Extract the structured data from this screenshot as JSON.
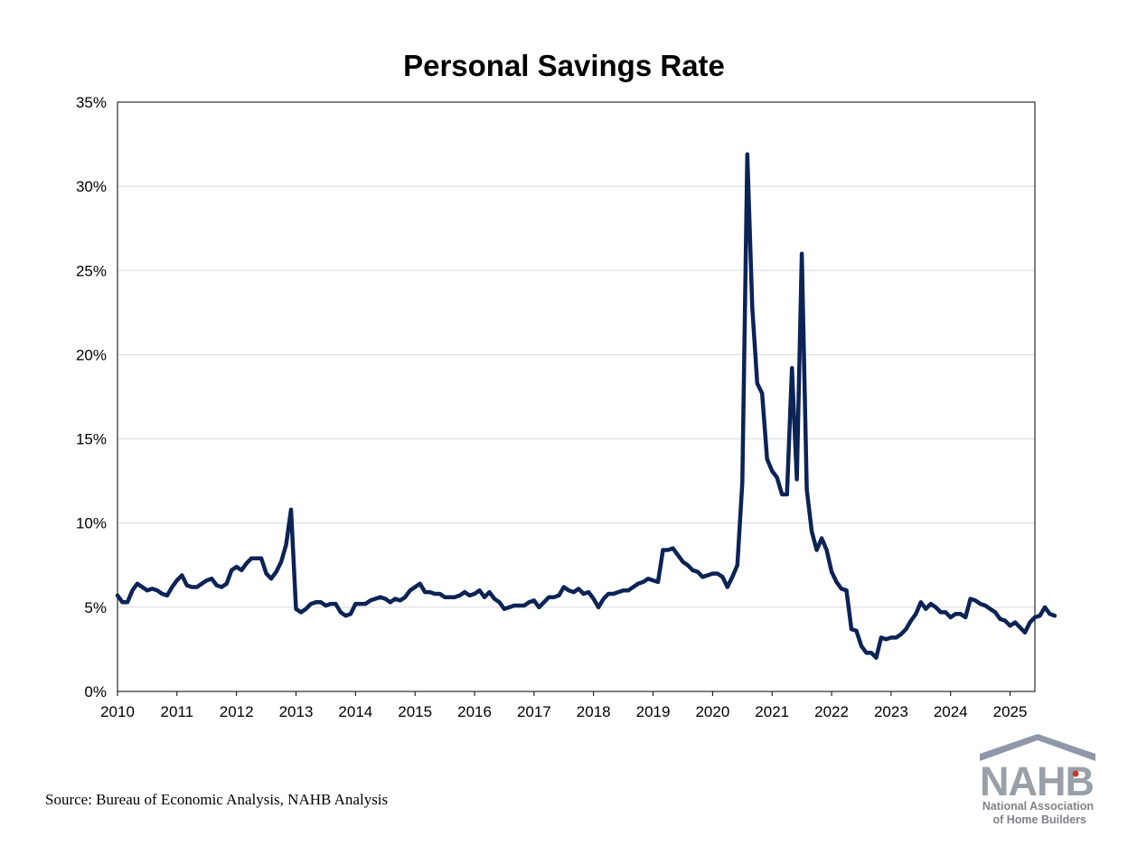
{
  "chart_data": {
    "type": "line",
    "title": "Personal Savings Rate",
    "xlabel": "",
    "ylabel": "",
    "ylim": [
      0,
      35
    ],
    "xlim": [
      "2010-01",
      "2025-06"
    ],
    "y_ticks": [
      "0%",
      "5%",
      "10%",
      "15%",
      "20%",
      "25%",
      "30%",
      "35%"
    ],
    "x_ticks": [
      "2010",
      "2011",
      "2012",
      "2013",
      "2014",
      "2015",
      "2016",
      "2017",
      "2018",
      "2019",
      "2020",
      "2021",
      "2022",
      "2023",
      "2024",
      "2025"
    ],
    "grid": "horizontal",
    "line_color": "#0c2356",
    "series": [
      {
        "points": [
          [
            "2010-01",
            5.7
          ],
          [
            "2010-02",
            5.3
          ],
          [
            "2010-03",
            5.3
          ],
          [
            "2010-04",
            6.0
          ],
          [
            "2010-05",
            6.4
          ],
          [
            "2010-06",
            6.2
          ],
          [
            "2010-07",
            6.0
          ],
          [
            "2010-08",
            6.1
          ],
          [
            "2010-09",
            6.0
          ],
          [
            "2010-10",
            5.8
          ],
          [
            "2010-11",
            5.7
          ],
          [
            "2010-12",
            6.2
          ],
          [
            "2011-01",
            6.6
          ],
          [
            "2011-02",
            6.9
          ],
          [
            "2011-03",
            6.3
          ],
          [
            "2011-04",
            6.2
          ],
          [
            "2011-05",
            6.2
          ],
          [
            "2011-06",
            6.4
          ],
          [
            "2011-07",
            6.6
          ],
          [
            "2011-08",
            6.7
          ],
          [
            "2011-09",
            6.3
          ],
          [
            "2011-10",
            6.2
          ],
          [
            "2011-11",
            6.4
          ],
          [
            "2011-12",
            7.2
          ],
          [
            "2012-01",
            7.4
          ],
          [
            "2012-02",
            7.2
          ],
          [
            "2012-03",
            7.6
          ],
          [
            "2012-04",
            7.9
          ],
          [
            "2012-05",
            7.9
          ],
          [
            "2012-06",
            7.9
          ],
          [
            "2012-07",
            7.0
          ],
          [
            "2012-08",
            6.7
          ],
          [
            "2012-09",
            7.1
          ],
          [
            "2012-10",
            7.7
          ],
          [
            "2012-11",
            8.7
          ],
          [
            "2012-12",
            10.8
          ],
          [
            "2013-01",
            4.9
          ],
          [
            "2013-02",
            4.7
          ],
          [
            "2013-03",
            4.9
          ],
          [
            "2013-04",
            5.2
          ],
          [
            "2013-05",
            5.3
          ],
          [
            "2013-06",
            5.3
          ],
          [
            "2013-07",
            5.1
          ],
          [
            "2013-08",
            5.2
          ],
          [
            "2013-09",
            5.2
          ],
          [
            "2013-10",
            4.7
          ],
          [
            "2013-11",
            4.5
          ],
          [
            "2013-12",
            4.6
          ],
          [
            "2014-01",
            5.2
          ],
          [
            "2014-02",
            5.2
          ],
          [
            "2014-03",
            5.2
          ],
          [
            "2014-04",
            5.4
          ],
          [
            "2014-05",
            5.5
          ],
          [
            "2014-06",
            5.6
          ],
          [
            "2014-07",
            5.5
          ],
          [
            "2014-08",
            5.3
          ],
          [
            "2014-09",
            5.5
          ],
          [
            "2014-10",
            5.4
          ],
          [
            "2014-11",
            5.6
          ],
          [
            "2014-12",
            6.0
          ],
          [
            "2015-01",
            6.2
          ],
          [
            "2015-02",
            6.4
          ],
          [
            "2015-03",
            5.9
          ],
          [
            "2015-04",
            5.9
          ],
          [
            "2015-05",
            5.8
          ],
          [
            "2015-06",
            5.8
          ],
          [
            "2015-07",
            5.6
          ],
          [
            "2015-08",
            5.6
          ],
          [
            "2015-09",
            5.6
          ],
          [
            "2015-10",
            5.7
          ],
          [
            "2015-11",
            5.9
          ],
          [
            "2015-12",
            5.7
          ],
          [
            "2016-01",
            5.8
          ],
          [
            "2016-02",
            6.0
          ],
          [
            "2016-03",
            5.6
          ],
          [
            "2016-04",
            5.9
          ],
          [
            "2016-05",
            5.5
          ],
          [
            "2016-06",
            5.3
          ],
          [
            "2016-07",
            4.9
          ],
          [
            "2016-08",
            5.0
          ],
          [
            "2016-09",
            5.1
          ],
          [
            "2016-10",
            5.1
          ],
          [
            "2016-11",
            5.1
          ],
          [
            "2016-12",
            5.3
          ],
          [
            "2017-01",
            5.4
          ],
          [
            "2017-02",
            5.0
          ],
          [
            "2017-03",
            5.3
          ],
          [
            "2017-04",
            5.6
          ],
          [
            "2017-05",
            5.6
          ],
          [
            "2017-06",
            5.7
          ],
          [
            "2017-07",
            6.2
          ],
          [
            "2017-08",
            6.0
          ],
          [
            "2017-09",
            5.9
          ],
          [
            "2017-10",
            6.1
          ],
          [
            "2017-11",
            5.8
          ],
          [
            "2017-12",
            5.9
          ],
          [
            "2018-01",
            5.5
          ],
          [
            "2018-02",
            5.0
          ],
          [
            "2018-03",
            5.5
          ],
          [
            "2018-04",
            5.8
          ],
          [
            "2018-05",
            5.8
          ],
          [
            "2018-06",
            5.9
          ],
          [
            "2018-07",
            6.0
          ],
          [
            "2018-08",
            6.0
          ],
          [
            "2018-09",
            6.2
          ],
          [
            "2018-10",
            6.4
          ],
          [
            "2018-11",
            6.5
          ],
          [
            "2018-12",
            6.7
          ],
          [
            "2019-01",
            6.6
          ],
          [
            "2019-02",
            6.5
          ],
          [
            "2019-03",
            8.4
          ],
          [
            "2019-04",
            8.4
          ],
          [
            "2019-05",
            8.5
          ],
          [
            "2019-06",
            8.1
          ],
          [
            "2019-07",
            7.7
          ],
          [
            "2019-08",
            7.5
          ],
          [
            "2019-09",
            7.2
          ],
          [
            "2019-10",
            7.1
          ],
          [
            "2019-11",
            6.8
          ],
          [
            "2019-12",
            6.9
          ],
          [
            "2020-01",
            7.0
          ],
          [
            "2020-02",
            7.0
          ],
          [
            "2020-03",
            6.8
          ],
          [
            "2020-04",
            6.2
          ],
          [
            "2020-05",
            6.8
          ],
          [
            "2020-06",
            7.5
          ],
          [
            "2020-07",
            12.4
          ],
          [
            "2020-08",
            31.9
          ],
          [
            "2020-09",
            22.8
          ],
          [
            "2020-10",
            18.3
          ],
          [
            "2020-11",
            17.7
          ],
          [
            "2020-12",
            13.8
          ],
          [
            "2021-01",
            13.1
          ],
          [
            "2021-02",
            12.7
          ],
          [
            "2021-03",
            11.7
          ],
          [
            "2021-04",
            11.7
          ],
          [
            "2021-05",
            19.2
          ],
          [
            "2021-06",
            12.6
          ],
          [
            "2021-07",
            26.0
          ],
          [
            "2021-08",
            12.0
          ],
          [
            "2021-09",
            9.5
          ],
          [
            "2021-10",
            8.4
          ],
          [
            "2021-11",
            9.1
          ],
          [
            "2021-12",
            8.4
          ],
          [
            "2022-01",
            7.1
          ],
          [
            "2022-02",
            6.5
          ],
          [
            "2022-03",
            6.1
          ],
          [
            "2022-04",
            6.0
          ],
          [
            "2022-05",
            3.7
          ],
          [
            "2022-06",
            3.6
          ],
          [
            "2022-07",
            2.7
          ],
          [
            "2022-08",
            2.3
          ],
          [
            "2022-09",
            2.3
          ],
          [
            "2022-10",
            2.0
          ],
          [
            "2022-11",
            3.2
          ],
          [
            "2022-12",
            3.1
          ],
          [
            "2023-01",
            3.2
          ],
          [
            "2023-02",
            3.2
          ],
          [
            "2023-03",
            3.4
          ],
          [
            "2023-04",
            3.7
          ],
          [
            "2023-05",
            4.2
          ],
          [
            "2023-06",
            4.6
          ],
          [
            "2023-07",
            5.3
          ],
          [
            "2023-08",
            4.9
          ],
          [
            "2023-09",
            5.2
          ],
          [
            "2023-10",
            5.0
          ],
          [
            "2023-11",
            4.7
          ],
          [
            "2023-12",
            4.7
          ],
          [
            "2024-01",
            4.4
          ],
          [
            "2024-02",
            4.6
          ],
          [
            "2024-03",
            4.6
          ],
          [
            "2024-04",
            4.4
          ],
          [
            "2024-05",
            5.5
          ],
          [
            "2024-06",
            5.4
          ],
          [
            "2024-07",
            5.2
          ],
          [
            "2024-08",
            5.1
          ],
          [
            "2024-09",
            4.9
          ],
          [
            "2024-10",
            4.7
          ],
          [
            "2024-11",
            4.3
          ],
          [
            "2024-12",
            4.2
          ],
          [
            "2025-01",
            3.9
          ],
          [
            "2025-02",
            4.1
          ],
          [
            "2025-03",
            3.8
          ],
          [
            "2025-04",
            3.5
          ],
          [
            "2025-05",
            4.1
          ],
          [
            "2025-06",
            4.4
          ],
          [
            "2025-07",
            4.5
          ],
          [
            "2025-08",
            5.0
          ],
          [
            "2025-09",
            4.6
          ],
          [
            "2025-10",
            4.5
          ]
        ]
      }
    ]
  },
  "footer": {
    "source": "Source: Bureau of Economic Analysis, NAHB Analysis"
  },
  "logo": {
    "brand": "NAHB",
    "registered": "®",
    "line1": "National Association",
    "line2": "of Home Builders",
    "roof_color": "#8f97a8",
    "text_color": "#9aa0a8",
    "star_color": "#c0392b"
  }
}
